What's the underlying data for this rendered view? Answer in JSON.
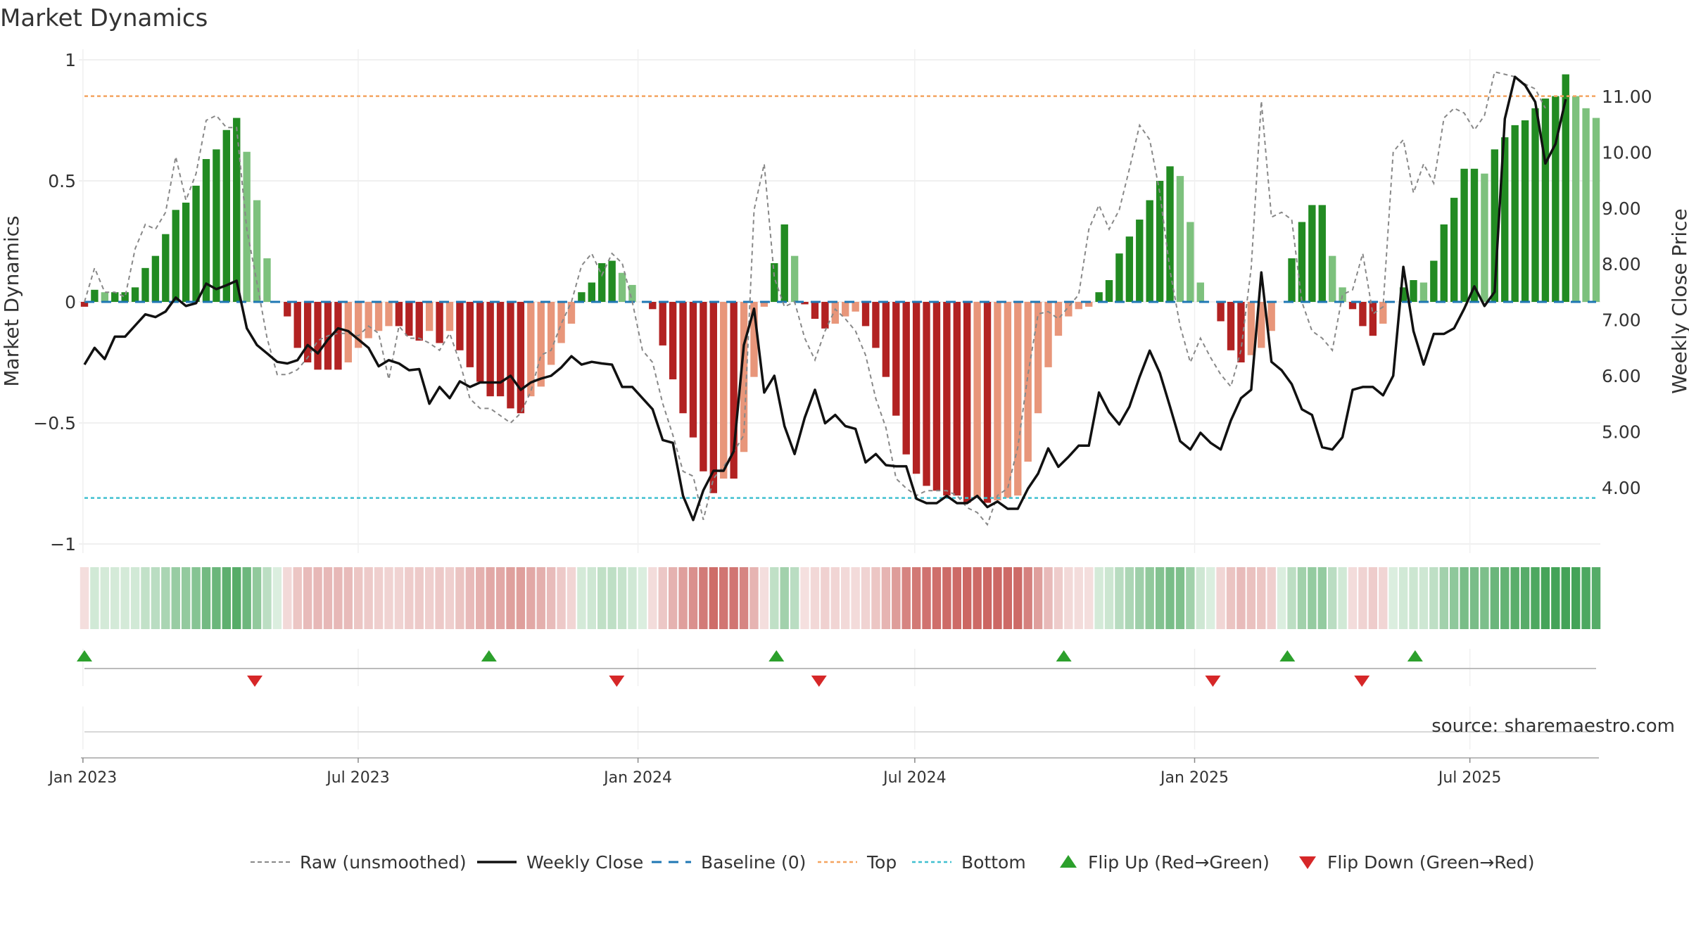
{
  "chart_data": {
    "type": "bar",
    "title": "Market Dynamics",
    "ylabel": "Market Dynamics",
    "y2label": "Weekly Close Price",
    "ylim": [
      -1,
      1
    ],
    "y2lim": [
      3.0,
      11.7
    ],
    "yticks": [
      1,
      0.5,
      0,
      -0.5,
      -1
    ],
    "ytick_labels": [
      "1",
      "0.5",
      "0",
      "−0.5",
      "−1"
    ],
    "y2ticks": [
      11,
      10,
      9,
      8,
      7,
      6,
      5,
      4
    ],
    "y2tick_labels": [
      "11.00",
      "10.00",
      "9.00",
      "8.00",
      "7.00",
      "6.00",
      "5.00",
      "4.00"
    ],
    "x_start": "2023-01-02",
    "x_end": "2025-09-22",
    "xticks": [
      {
        "date": "2023-01-01",
        "label": "Jan 2023"
      },
      {
        "date": "2023-07-01",
        "label": "Jul 2023"
      },
      {
        "date": "2024-01-01",
        "label": "Jan 2024"
      },
      {
        "date": "2024-07-01",
        "label": "Jul 2024"
      },
      {
        "date": "2025-01-01",
        "label": "Jan 2025"
      },
      {
        "date": "2025-07-01",
        "label": "Jul 2025"
      }
    ],
    "top_line": 0.85,
    "bottom_line": -0.81,
    "baseline": 0,
    "source": "source: sharemaestro.com",
    "dynamics": [
      -0.02,
      0.05,
      0.04,
      0.04,
      0.04,
      0.06,
      0.14,
      0.19,
      0.28,
      0.38,
      0.41,
      0.48,
      0.59,
      0.63,
      0.71,
      0.76,
      0.62,
      0.42,
      0.18,
      0.0,
      -0.06,
      -0.19,
      -0.25,
      -0.28,
      -0.28,
      -0.28,
      -0.25,
      -0.19,
      -0.15,
      -0.12,
      -0.1,
      -0.1,
      -0.14,
      -0.16,
      -0.12,
      -0.17,
      -0.12,
      -0.2,
      -0.27,
      -0.33,
      -0.39,
      -0.39,
      -0.44,
      -0.46,
      -0.39,
      -0.35,
      -0.26,
      -0.17,
      -0.09,
      0.04,
      0.08,
      0.16,
      0.17,
      0.12,
      0.07,
      0.0,
      -0.03,
      -0.18,
      -0.32,
      -0.46,
      -0.56,
      -0.7,
      -0.79,
      -0.73,
      -0.73,
      -0.62,
      -0.31,
      -0.02,
      0.16,
      0.32,
      0.19,
      -0.01,
      -0.07,
      -0.11,
      -0.09,
      -0.06,
      -0.04,
      -0.1,
      -0.19,
      -0.31,
      -0.47,
      -0.63,
      -0.71,
      -0.76,
      -0.78,
      -0.8,
      -0.8,
      -0.83,
      -0.81,
      -0.83,
      -0.82,
      -0.81,
      -0.8,
      -0.66,
      -0.46,
      -0.27,
      -0.14,
      -0.06,
      -0.03,
      -0.02,
      0.04,
      0.09,
      0.2,
      0.27,
      0.34,
      0.42,
      0.5,
      0.56,
      0.52,
      0.33,
      0.08,
      0.0,
      -0.08,
      -0.2,
      -0.25,
      -0.22,
      -0.19,
      -0.12,
      0.0,
      0.18,
      0.33,
      0.4,
      0.4,
      0.19,
      0.06,
      -0.03,
      -0.1,
      -0.14,
      -0.09,
      0.0,
      0.06,
      0.09,
      0.08,
      0.17,
      0.32,
      0.43,
      0.55,
      0.55,
      0.53,
      0.63,
      0.68,
      0.73,
      0.75,
      0.8,
      0.84,
      0.85,
      0.94,
      0.85,
      0.8,
      0.76
    ],
    "raw": [
      0.0,
      0.14,
      0.04,
      0.04,
      0.02,
      0.22,
      0.32,
      0.3,
      0.37,
      0.6,
      0.42,
      0.53,
      0.75,
      0.77,
      0.72,
      0.72,
      0.3,
      0.08,
      -0.15,
      -0.3,
      -0.3,
      -0.28,
      -0.23,
      -0.16,
      -0.14,
      -0.13,
      -0.13,
      -0.14,
      -0.1,
      -0.13,
      -0.32,
      -0.1,
      -0.15,
      -0.15,
      -0.17,
      -0.2,
      -0.13,
      -0.25,
      -0.4,
      -0.44,
      -0.44,
      -0.47,
      -0.5,
      -0.46,
      -0.37,
      -0.22,
      -0.2,
      -0.09,
      0.0,
      0.15,
      0.2,
      0.11,
      0.2,
      0.16,
      0.0,
      -0.2,
      -0.25,
      -0.42,
      -0.55,
      -0.7,
      -0.72,
      -0.9,
      -0.73,
      -0.68,
      -0.62,
      -0.55,
      0.38,
      0.57,
      0.1,
      -0.02,
      0.0,
      -0.15,
      -0.24,
      -0.12,
      -0.03,
      -0.07,
      -0.12,
      -0.22,
      -0.4,
      -0.52,
      -0.73,
      -0.77,
      -0.8,
      -0.78,
      -0.78,
      -0.78,
      -0.8,
      -0.85,
      -0.87,
      -0.92,
      -0.8,
      -0.77,
      -0.6,
      -0.3,
      -0.05,
      -0.04,
      -0.07,
      -0.02,
      0.03,
      0.3,
      0.4,
      0.3,
      0.38,
      0.55,
      0.73,
      0.67,
      0.45,
      0.13,
      -0.1,
      -0.25,
      -0.15,
      -0.23,
      -0.3,
      -0.35,
      -0.2,
      0.14,
      0.83,
      0.35,
      0.37,
      0.34,
      0.0,
      -0.12,
      -0.15,
      -0.2,
      0.03,
      0.05,
      0.2,
      -0.05,
      -0.02,
      0.62,
      0.67,
      0.45,
      0.57,
      0.49,
      0.76,
      0.8,
      0.78,
      0.71,
      0.77,
      0.95,
      0.94,
      0.93,
      0.9,
      0.88,
      0.8
    ],
    "close": [
      6.2,
      6.5,
      6.3,
      6.7,
      6.7,
      6.9,
      7.1,
      7.05,
      7.15,
      7.4,
      7.25,
      7.3,
      7.65,
      7.55,
      7.62,
      7.7,
      6.85,
      6.55,
      6.4,
      6.25,
      6.22,
      6.28,
      6.55,
      6.4,
      6.65,
      6.85,
      6.8,
      6.65,
      6.5,
      6.17,
      6.28,
      6.22,
      6.1,
      6.12,
      5.5,
      5.8,
      5.6,
      5.9,
      5.8,
      5.88,
      5.88,
      5.88,
      6.0,
      5.75,
      5.88,
      5.95,
      6.0,
      6.15,
      6.35,
      6.2,
      6.25,
      6.22,
      6.2,
      5.8,
      5.8,
      5.6,
      5.4,
      4.85,
      4.8,
      3.85,
      3.42,
      3.95,
      4.3,
      4.3,
      4.65,
      6.55,
      7.2,
      5.7,
      6.0,
      5.1,
      4.6,
      5.25,
      5.75,
      5.15,
      5.3,
      5.1,
      5.05,
      4.45,
      4.6,
      4.4,
      4.38,
      4.38,
      3.8,
      3.72,
      3.72,
      3.85,
      3.72,
      3.72,
      3.85,
      3.65,
      3.75,
      3.62,
      3.62,
      3.98,
      4.25,
      4.7,
      4.37,
      4.55,
      4.75,
      4.75,
      5.7,
      5.35,
      5.13,
      5.45,
      5.98,
      6.45,
      6.05,
      5.45,
      4.83,
      4.68,
      4.98,
      4.8,
      4.68,
      5.2,
      5.6,
      5.75,
      7.85,
      6.25,
      6.1,
      5.85,
      5.4,
      5.3,
      4.72,
      4.68,
      4.9,
      5.75,
      5.8,
      5.8,
      5.65,
      6.0,
      7.95,
      6.8,
      6.2,
      6.75,
      6.75,
      6.85,
      7.2,
      7.6,
      7.25,
      7.5,
      10.6,
      11.35,
      11.2,
      10.9,
      9.8,
      10.15,
      10.95
    ],
    "flip_up": [
      "2023-01-02",
      "2023-09-25",
      "2024-04-01",
      "2024-10-07",
      "2025-03-03",
      "2025-05-26"
    ],
    "flip_down": [
      "2023-04-24",
      "2023-12-18",
      "2024-04-29",
      "2025-01-13",
      "2025-04-21"
    ],
    "legend": [
      {
        "label": "Raw (unsmoothed)",
        "style": "dashed-gray"
      },
      {
        "label": "Weekly Close",
        "style": "solid-black"
      },
      {
        "label": "Baseline (0)",
        "style": "dashed-blue"
      },
      {
        "label": "Top",
        "style": "dashed-orange"
      },
      {
        "label": "Bottom",
        "style": "dashed-cyan"
      },
      {
        "label": "Flip Up (Red→Green)",
        "style": "triangle-up-green"
      },
      {
        "label": "Flip Down (Green→Red)",
        "style": "triangle-down-red"
      }
    ],
    "legend_position": "bottom",
    "grid": true,
    "colors": {
      "green_strong": "#228b22",
      "green_light": "#7dc17d",
      "red_strong": "#b22222",
      "red_light": "#e8967a",
      "close_line": "#111111",
      "raw_line": "#888888",
      "baseline": "#1f77b4",
      "top": "#f4a460",
      "bottom": "#40c0d0",
      "flip_up": "#2ca02c",
      "flip_down": "#d62728",
      "strip_green": "#3a9e4f",
      "strip_red": "#c85b57"
    }
  }
}
